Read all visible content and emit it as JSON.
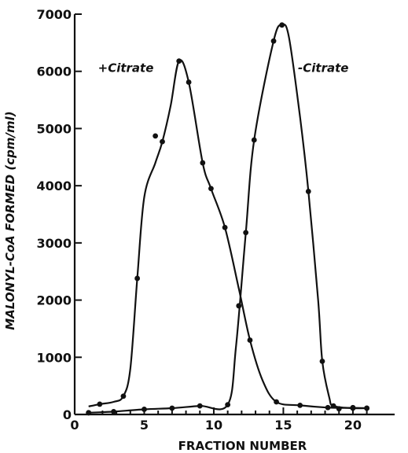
{
  "chart_data": {
    "type": "line",
    "title": "",
    "xlabel": "FRACTION NUMBER",
    "ylabel": "MALONYL-CoA FORMED (cpm/ml)",
    "xlim": [
      0,
      23
    ],
    "ylim": [
      0,
      7000
    ],
    "xticks": [
      0,
      5,
      10,
      15,
      20
    ],
    "yticks": [
      0,
      1000,
      2000,
      3000,
      4000,
      5000,
      6000,
      7000
    ],
    "x_tick_labels": [
      "0",
      "5",
      "10",
      "15",
      "20"
    ],
    "y_tick_labels": [
      "0",
      "1000",
      "2000",
      "3000",
      "4000",
      "5000",
      "6000",
      "7000"
    ],
    "grid": false,
    "series": [
      {
        "name": "+Citrate",
        "points": [
          [
            1.0,
            30
          ],
          [
            1.8,
            180
          ],
          [
            3.5,
            320
          ],
          [
            4.5,
            2380
          ],
          [
            5.8,
            4870
          ],
          [
            6.3,
            4770
          ],
          [
            7.5,
            6180
          ],
          [
            8.2,
            5810
          ],
          [
            9.2,
            4400
          ],
          [
            9.8,
            3950
          ],
          [
            10.8,
            3270
          ],
          [
            11.8,
            1900
          ],
          [
            12.6,
            1300
          ],
          [
            14.5,
            220
          ],
          [
            16.2,
            160
          ],
          [
            18.2,
            120
          ],
          [
            19.0,
            100
          ],
          [
            20.0,
            120
          ],
          [
            21.0,
            110
          ]
        ],
        "curve": [
          [
            1.0,
            140
          ],
          [
            1.8,
            180
          ],
          [
            2.8,
            220
          ],
          [
            3.5,
            320
          ],
          [
            4.0,
            800
          ],
          [
            4.5,
            2380
          ],
          [
            5.0,
            3800
          ],
          [
            5.8,
            4400
          ],
          [
            6.3,
            4770
          ],
          [
            6.9,
            5400
          ],
          [
            7.5,
            6180
          ],
          [
            8.2,
            5810
          ],
          [
            9.2,
            4400
          ],
          [
            9.8,
            3950
          ],
          [
            10.8,
            3270
          ],
          [
            11.8,
            2200
          ],
          [
            12.6,
            1300
          ],
          [
            13.5,
            600
          ],
          [
            14.5,
            220
          ],
          [
            16.2,
            160
          ],
          [
            18.2,
            120
          ],
          [
            20.0,
            115
          ],
          [
            21.0,
            110
          ]
        ]
      },
      {
        "name": "-Citrate",
        "points": [
          [
            1.0,
            30
          ],
          [
            2.8,
            50
          ],
          [
            5.0,
            90
          ],
          [
            7.0,
            110
          ],
          [
            9.0,
            150
          ],
          [
            11.0,
            170
          ],
          [
            11.8,
            1900
          ],
          [
            12.3,
            3180
          ],
          [
            12.9,
            4800
          ],
          [
            14.3,
            6530
          ],
          [
            14.9,
            6810
          ],
          [
            16.8,
            3900
          ],
          [
            17.8,
            930
          ],
          [
            18.6,
            150
          ],
          [
            20.0,
            110
          ],
          [
            21.0,
            110
          ]
        ],
        "curve": [
          [
            1.0,
            30
          ],
          [
            2.8,
            50
          ],
          [
            5.0,
            90
          ],
          [
            7.0,
            110
          ],
          [
            9.0,
            150
          ],
          [
            11.0,
            170
          ],
          [
            11.6,
            1200
          ],
          [
            12.3,
            3180
          ],
          [
            12.9,
            4800
          ],
          [
            14.3,
            6530
          ],
          [
            14.9,
            6810
          ],
          [
            15.4,
            6600
          ],
          [
            16.2,
            5200
          ],
          [
            16.8,
            3900
          ],
          [
            17.5,
            2000
          ],
          [
            17.8,
            930
          ],
          [
            18.3,
            300
          ],
          [
            18.6,
            150
          ],
          [
            20.0,
            110
          ],
          [
            21.0,
            110
          ]
        ]
      }
    ],
    "annotations": [
      {
        "text": "+Citrate",
        "x": 4.5,
        "y": 6100
      },
      {
        "text": "-Citrate",
        "x": 15.6,
        "y": 6100
      }
    ]
  }
}
